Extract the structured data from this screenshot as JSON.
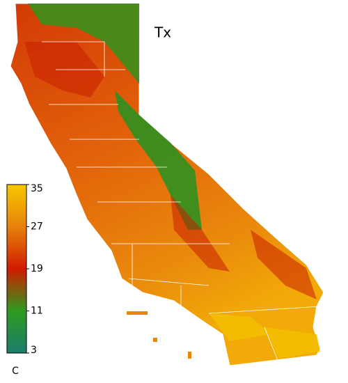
{
  "title": "Tx",
  "colorbar": {
    "range": [
      3,
      35
    ],
    "ticks": [
      3,
      11,
      19,
      27,
      35
    ],
    "unit": "C",
    "colors": [
      "#1b7d6e",
      "#2f9a1f",
      "#d01c00",
      "#e7820c",
      "#f6c800"
    ]
  }
}
